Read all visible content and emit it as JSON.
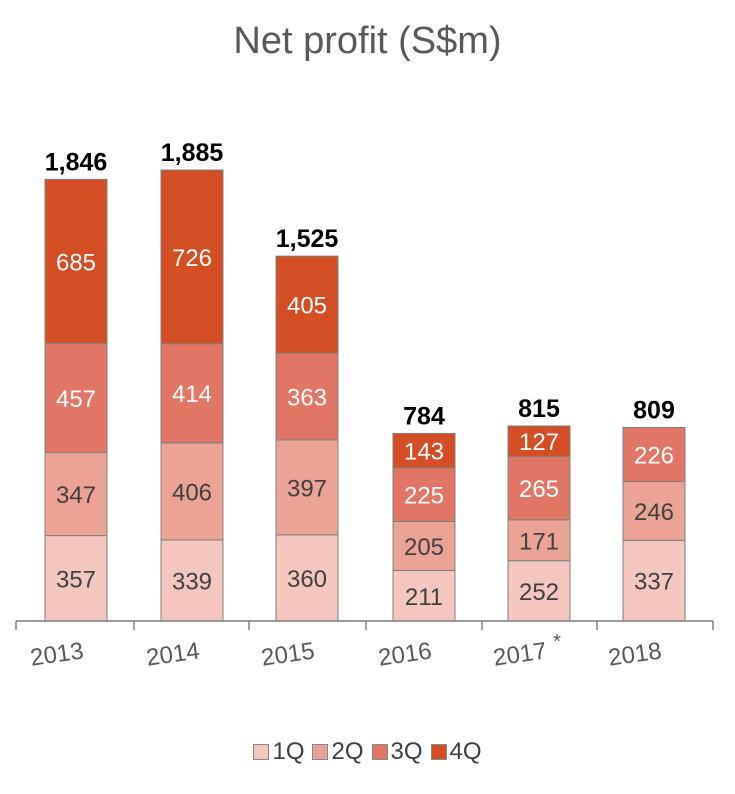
{
  "chart_data": {
    "type": "bar",
    "stacked": true,
    "title": "Net profit (S$m)",
    "categories": [
      "2013",
      "2014",
      "2015",
      "2016",
      "2017",
      "2018"
    ],
    "category_footnote_marks": [
      "",
      "",
      "",
      "",
      "*",
      ""
    ],
    "series": [
      {
        "name": "1Q",
        "color": "#F4C6BE",
        "values": [
          357,
          339,
          360,
          211,
          252,
          337
        ]
      },
      {
        "name": "2Q",
        "color": "#EBA494",
        "values": [
          347,
          406,
          397,
          205,
          171,
          246
        ]
      },
      {
        "name": "3Q",
        "color": "#E07663",
        "values": [
          457,
          414,
          363,
          225,
          265,
          226
        ]
      },
      {
        "name": "4Q",
        "color": "#D34E25",
        "values": [
          685,
          726,
          405,
          143,
          127,
          null
        ]
      }
    ],
    "totals": [
      "1,846",
      "1,885",
      "1,525",
      "784",
      "815",
      "809"
    ],
    "ylim": [
      0,
      1885
    ],
    "grid": false,
    "legend_position": "bottom"
  }
}
